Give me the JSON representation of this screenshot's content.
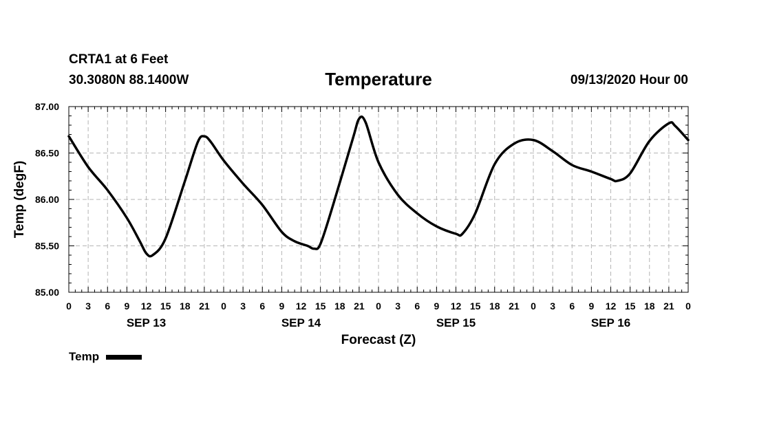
{
  "header": {
    "station": "CRTA1 at 6 Feet",
    "coords": "30.3080N 88.1400W",
    "title": "Temperature",
    "timestamp": "09/13/2020 Hour 00"
  },
  "legend": {
    "label": "Temp"
  },
  "colors": {
    "line": "#000000",
    "grid": "#b4b4b4",
    "axis": "#000000"
  },
  "chart_data": {
    "type": "line",
    "title": "Temperature",
    "xlabel": "Forecast (Z)",
    "ylabel": "Temp (degF)",
    "xlim": [
      0,
      96
    ],
    "ylim": [
      85.0,
      87.0
    ],
    "y_ticks": [
      "85.00",
      "85.50",
      "86.00",
      "86.50",
      "87.00"
    ],
    "x_tick_labels": [
      "0",
      "3",
      "6",
      "9",
      "12",
      "15",
      "18",
      "21",
      "0",
      "3",
      "6",
      "9",
      "12",
      "15",
      "18",
      "21",
      "0",
      "3",
      "6",
      "9",
      "12",
      "15",
      "18",
      "21",
      "0",
      "3",
      "6",
      "9",
      "12",
      "15",
      "18",
      "21",
      "0"
    ],
    "date_labels": [
      {
        "hour": 12,
        "label": "SEP 13"
      },
      {
        "hour": 36,
        "label": "SEP 14"
      },
      {
        "hour": 60,
        "label": "SEP 15"
      },
      {
        "hour": 84,
        "label": "SEP 16"
      }
    ],
    "grid": true,
    "series": [
      {
        "name": "Temp",
        "x": [
          0,
          3,
          6,
          9,
          11,
          12,
          13,
          15,
          18,
          20,
          21,
          22,
          24,
          27,
          30,
          33,
          35,
          37,
          38,
          39,
          41,
          44,
          45,
          46,
          48,
          51,
          54,
          57,
          60,
          61,
          63,
          66,
          69,
          72,
          75,
          78,
          81,
          84,
          85,
          87,
          90,
          93,
          94,
          96
        ],
        "values": [
          86.68,
          86.35,
          86.1,
          85.8,
          85.55,
          85.42,
          85.4,
          85.58,
          86.2,
          86.62,
          86.68,
          86.62,
          86.42,
          86.17,
          85.94,
          85.65,
          85.55,
          85.5,
          85.47,
          85.52,
          85.95,
          86.65,
          86.87,
          86.83,
          86.4,
          86.05,
          85.85,
          85.71,
          85.63,
          85.63,
          85.85,
          86.38,
          86.6,
          86.64,
          86.52,
          86.37,
          86.3,
          86.22,
          86.2,
          86.28,
          86.63,
          86.82,
          86.79,
          86.64
        ]
      }
    ]
  }
}
